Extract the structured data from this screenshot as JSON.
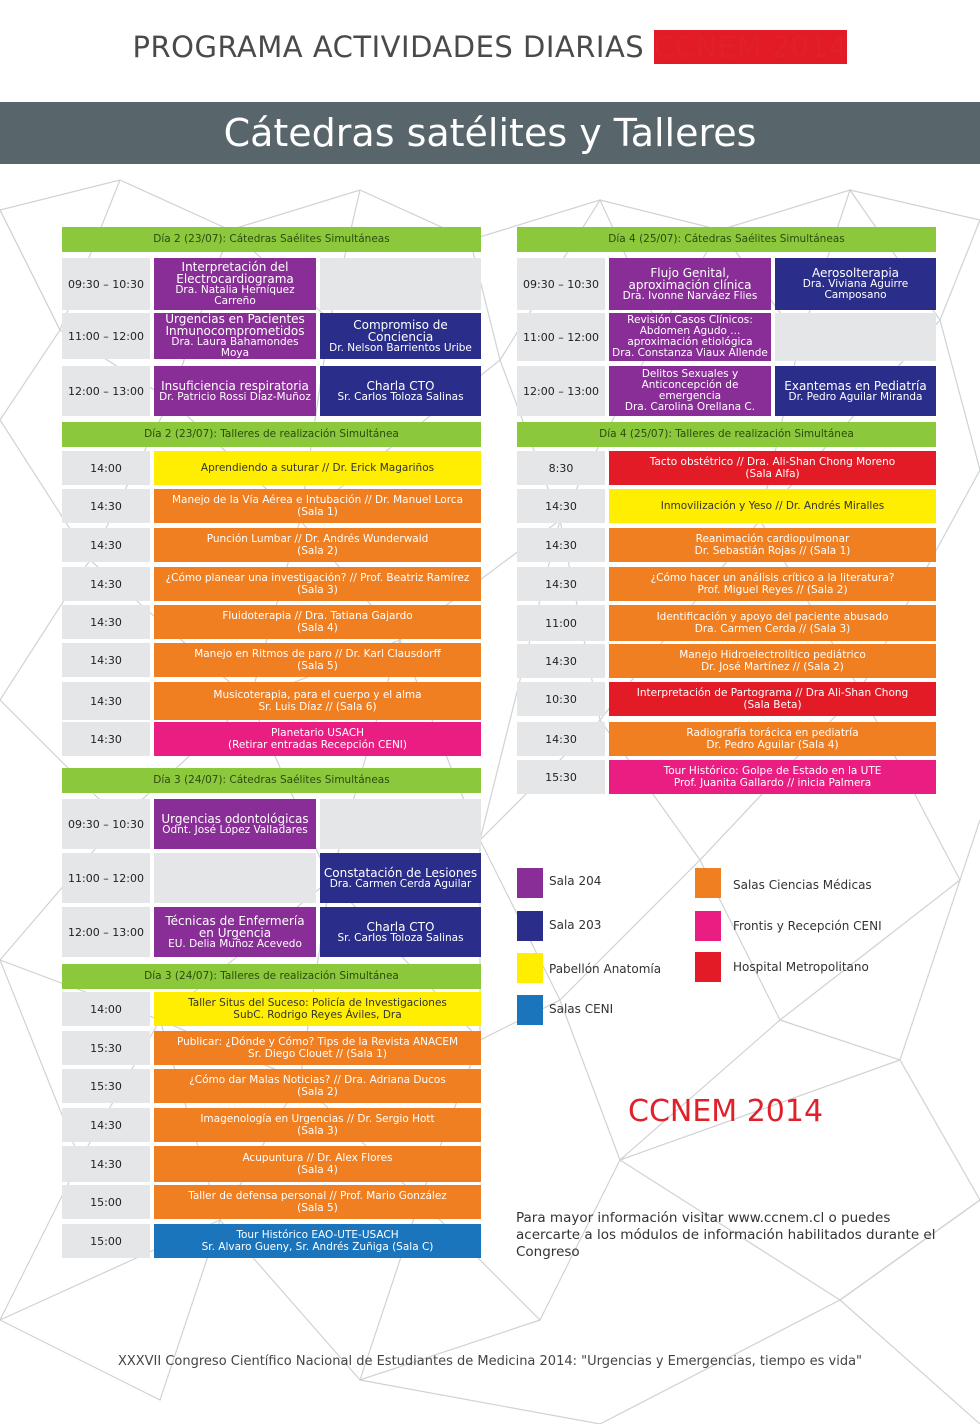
{
  "title": {
    "main": "PROGRAMA ACTIVIDADES DIARIAS ",
    "accent": "CCNEM 2014"
  },
  "banner": "Cátedras satélites y Talleres",
  "colors": {
    "purple": "#8a2e97",
    "navy": "#2b2d8a",
    "yellow": "#ffee00",
    "orange": "#f07f22",
    "pink": "#ea1e82",
    "red": "#e31b27",
    "blue": "#1a75bd",
    "green": "#8cc83c",
    "banner": "#58656a"
  },
  "day2_cat": {
    "header": "Día 2 (23/07): Cátedras Saélites Simultáneas",
    "rows": [
      {
        "time": "09:30 – 10:30",
        "a": {
          "title": "Interpretación del Electrocardiograma",
          "speaker": "Dra. Natalia Herníquez Carreño"
        }
      },
      {
        "time": "11:00 – 12:00",
        "a": {
          "title": "Urgencias en Pacientes Inmunocomprometidos",
          "speaker": "Dra. Laura Bahamondes Moya"
        },
        "b": {
          "title": "Compromiso de Conciencia",
          "speaker": "Dr. Nelson Barrientos Uribe"
        }
      },
      {
        "time": "12:00 – 13:00",
        "a": {
          "title": "Insuficiencia respiratoria",
          "speaker": "Dr. Patricio Rossi Díaz-Muñoz"
        },
        "b": {
          "title": "Charla CTO",
          "speaker": "Sr. Carlos Toloza Salinas"
        }
      }
    ]
  },
  "day2_ws": {
    "header": "Día 2 (23/07): Talleres de realización Simultánea",
    "rows": [
      {
        "time": "14:00",
        "line1": "Aprendiendo a suturar // Dr. Erick Magariños",
        "line2": ""
      },
      {
        "time": "14:30",
        "line1": "Manejo de la Vía Aérea e Intubación // Dr. Manuel Lorca",
        "line2": "(Sala 1)"
      },
      {
        "time": "14:30",
        "line1": "Punción Lumbar // Dr. Andrés Wunderwald",
        "line2": "(Sala 2)"
      },
      {
        "time": "14:30",
        "line1": "¿Cómo planear una investigación? // Prof. Beatriz Ramírez",
        "line2": "(Sala 3)"
      },
      {
        "time": "14:30",
        "line1": "Fluidoterapia // Dra. Tatiana Gajardo",
        "line2": "(Sala 4)"
      },
      {
        "time": "14:30",
        "line1": "Manejo en Ritmos de paro // Dr. Karl Clausdorff",
        "line2": "(Sala 5)"
      },
      {
        "time": "14:30",
        "line1": "Musicoterapia, para el cuerpo y el alma",
        "line2": "Sr. Luis Díaz // (Sala 6)"
      },
      {
        "time": "14:30",
        "line1": "Planetario USACH",
        "line2": "(Retirar entradas Recepción CENI)"
      }
    ]
  },
  "day3_cat": {
    "header": "Día 3 (24/07): Cátedras Saélites Simultáneas",
    "rows": [
      {
        "time": "09:30 – 10:30",
        "a": {
          "title": "Urgencias odontológicas",
          "speaker": "Odnt. José López Valladares"
        }
      },
      {
        "time": "11:00 – 12:00",
        "b": {
          "title": "Constatación de Lesiones",
          "speaker": "Dra. Carmen Cerda Aguilar"
        }
      },
      {
        "time": "12:00 – 13:00",
        "a": {
          "title": "Técnicas de Enfermería en Urgencia",
          "speaker": "EU. Delia Muñoz Acevedo"
        },
        "b": {
          "title": "Charla CTO",
          "speaker": "Sr. Carlos Toloza Salinas"
        }
      }
    ]
  },
  "day3_ws": {
    "header": "Día 3 (24/07): Talleres de realización Simultánea",
    "rows": [
      {
        "time": "14:00",
        "line1": "Taller Situs del Suceso: Policía de Investigaciones",
        "line2": "SubC. Rodrigo Reyes Áviles, Dra"
      },
      {
        "time": "15:30",
        "line1": "Publicar: ¿Dónde y Cómo? Tips de la Revista ANACEM",
        "line2": "Sr. Diego Clouet // (Sala 1)"
      },
      {
        "time": "15:30",
        "line1": "¿Cómo dar Malas Noticias? // Dra. Adriana Ducos",
        "line2": "(Sala 2)"
      },
      {
        "time": "14:30",
        "line1": "Imagenología en Urgencias // Dr. Sergio Hott",
        "line2": "(Sala 3)"
      },
      {
        "time": "14:30",
        "line1": "Acupuntura // Dr. Alex Flores",
        "line2": "(Sala 4)"
      },
      {
        "time": "15:00",
        "line1": "Taller de defensa personal // Prof. Mario González",
        "line2": "(Sala 5)"
      },
      {
        "time": "15:00",
        "line1": "Tour Histórico EAO-UTE-USACH",
        "line2": "Sr. Alvaro Gueny, Sr. Andrés Zuñiga (Sala C)"
      }
    ]
  },
  "day4_cat": {
    "header": "Día 4 (25/07): Cátedras Saélites Simultáneas",
    "rows": [
      {
        "time": "09:30 – 10:30",
        "a": {
          "title": "Flujo Genital, aproximación clínica",
          "speaker": "Dra. Ivonne Narváez Flies"
        },
        "b": {
          "title": "Aerosolterapia",
          "speaker": "Dra. Viviana Aguirre Camposano"
        }
      },
      {
        "time": "11:00 – 12:00",
        "a": {
          "title": "Revisión Casos Clínicos: Abdomen Agudo ... aproximación etiológica",
          "speaker": "Dra. Constanza Viaux Allende"
        }
      },
      {
        "time": "12:00 – 13:00",
        "a": {
          "title": "Delitos Sexuales y Anticoncepción de emergencia",
          "speaker": "Dra. Carolina Orellana C."
        },
        "b": {
          "title": "Exantemas en Pediatría",
          "speaker": "Dr. Pedro Aguilar Miranda"
        }
      }
    ]
  },
  "day4_ws": {
    "header": "Día 4 (25/07): Talleres de realización Simultánea",
    "rows": [
      {
        "time": "8:30",
        "line1": "Tacto obstétrico // Dra. Ali-Shan Chong Moreno",
        "line2": "(Sala Alfa)"
      },
      {
        "time": "14:30",
        "line1": "Inmovilización y Yeso // Dr. Andrés Miralles",
        "line2": ""
      },
      {
        "time": "14:30",
        "line1": "Reanimación cardiopulmonar",
        "line2": "Dr. Sebastián Rojas // (Sala 1)"
      },
      {
        "time": "14:30",
        "line1": "¿Cómo hacer un análisis crítico a la literatura?",
        "line2": "Prof. Miguel Reyes // (Sala 2)"
      },
      {
        "time": "11:00",
        "line1": "Identificación y apoyo del paciente abusado",
        "line2": "Dra. Carmen Cerda // (Sala 3)"
      },
      {
        "time": "14:30",
        "line1": "Manejo Hidroelectrolítico pediátrico",
        "line2": "Dr. José Martínez // (Sala 2)"
      },
      {
        "time": "10:30",
        "line1": "Interpretación de Partograma // Dra Ali-Shan Chong",
        "line2": "(Sala Beta)"
      },
      {
        "time": "14:30",
        "line1": "Radiografía torácica en pediatría",
        "line2": "Dr. Pedro Aguilar (Sala 4)"
      },
      {
        "time": "15:30",
        "line1": "Tour Histórico: Golpe de Estado en la UTE",
        "line2": "Prof. Juanita Gallardo // inicia Palmera"
      }
    ]
  },
  "legend": [
    {
      "label": "Sala 204",
      "color": "#8a2e97"
    },
    {
      "label": "Sala 203",
      "color": "#2b2d8a"
    },
    {
      "label": "Pabellón Anatomía",
      "color": "#ffee00"
    },
    {
      "label": "Salas CENI",
      "color": "#1a75bd"
    },
    {
      "label": "Salas Ciencias Médicas",
      "color": "#f07f22"
    },
    {
      "label": "Frontis y Recepción CENI",
      "color": "#ea1e82"
    },
    {
      "label": "Hospital Metropolitano",
      "color": "#e31b27"
    }
  ],
  "ccnem": "CCNEM 2014",
  "info": "Para mayor información visitar www.ccnem.cl o puedes acercarte a los módulos de información habilitados durante el Congreso",
  "footer": "XXXVII Congreso Científico Nacional de Estudiantes de Medicina 2014: \"Urgencias y Emergencias, tiempo es vida\""
}
